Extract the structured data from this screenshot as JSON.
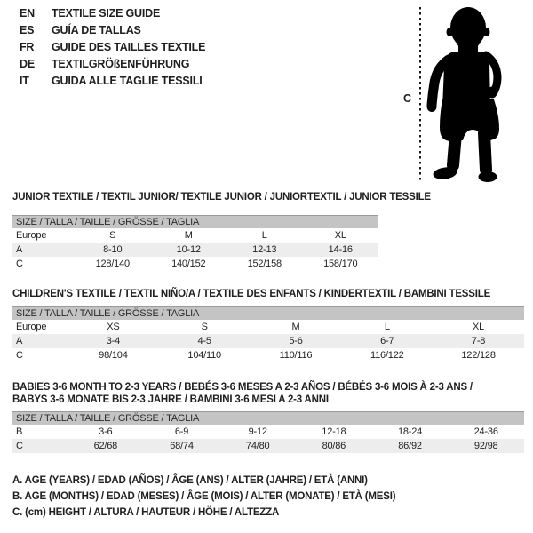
{
  "languages": {
    "items": [
      {
        "code": "EN",
        "label": "TEXTILE SIZE GUIDE"
      },
      {
        "code": "ES",
        "label": "GUÍA DE TALLAS"
      },
      {
        "code": "FR",
        "label": "GUIDE DES TAILLES TEXTILE"
      },
      {
        "code": "DE",
        "label": "TEXTILGRÖßENFÜHRUNG"
      },
      {
        "code": "IT",
        "label": "GUIDA ALLE TAGLIE TESSILI"
      }
    ]
  },
  "figure": {
    "height_marker_label": "C",
    "silhouette": "standing-baby",
    "silhouette_color": "#000000"
  },
  "colors": {
    "text": "#1f1f1f",
    "size_bar_bg": "#c4c4c4",
    "size_bar_border": "#9a9a9a",
    "row_shaded_bg": "#ededed"
  },
  "tables": {
    "junior": {
      "title_lines": [
        "JUNIOR TEXTILE / TEXTIL JUNIOR/ TEXTILE JUNIOR / JUNIORTEXTIL / JUNIOR TESSILE"
      ],
      "size_header": "SIZE / TALLA / TAILLE / GRÖSSE / TAGLIA",
      "rows": [
        {
          "shaded": false,
          "cells": [
            "Europe",
            "S",
            "M",
            "L",
            "XL"
          ]
        },
        {
          "shaded": true,
          "cells": [
            "A",
            "8-10",
            "10-12",
            "12-13",
            "14-16"
          ]
        },
        {
          "shaded": false,
          "cells": [
            "C",
            "128/140",
            "140/152",
            "152/158",
            "158/170"
          ]
        }
      ]
    },
    "children": {
      "title_lines": [
        "CHILDREN'S TEXTILE / TEXTIL NIÑO/A / TEXTILE DES ENFANTS / KINDERTEXTIL / BAMBINI TESSILE"
      ],
      "size_header": "SIZE / TALLA / TAILLE / GRÖSSE / TAGLIA",
      "rows": [
        {
          "shaded": false,
          "cells": [
            "Europe",
            "XS",
            "S",
            "M",
            "L",
            "XL"
          ]
        },
        {
          "shaded": true,
          "cells": [
            "A",
            "3-4",
            "4-5",
            "5-6",
            "6-7",
            "7-8"
          ]
        },
        {
          "shaded": false,
          "cells": [
            "C",
            "98/104",
            "104/110",
            "110/116",
            "116/122",
            "122/128"
          ]
        }
      ]
    },
    "babies": {
      "title_lines": [
        "BABIES 3-6 MONTH TO 2-3 YEARS / BEBÉS 3-6 MESES A 2-3 AÑOS / BÉBÉS 3-6 MOIS À 2-3 ANS /",
        "BABYS 3-6 MONATE BIS 2-3 JAHRE / BAMBINI 3-6 MESI A 2-3 ANNI"
      ],
      "size_header": "SIZE / TALLA / TAILLE / GRÖSSE / TAGLIA",
      "rows": [
        {
          "shaded": false,
          "cells": [
            "B",
            "3-6",
            "6-9",
            "9-12",
            "12-18",
            "18-24",
            "24-36"
          ]
        },
        {
          "shaded": true,
          "cells": [
            "C",
            "62/68",
            "68/74",
            "74/80",
            "80/86",
            "86/92",
            "92/98"
          ]
        }
      ]
    }
  },
  "legend": {
    "lines": [
      "A. AGE (YEARS) / EDAD (AÑOS) / ÂGE (ANS) / ALTER (JAHRE) / ETÀ (ANNI)",
      "B. AGE (MONTHS) / EDAD (MESES) / ÂGE (MOIS) / ALTER (MONATE) / ETÀ (MESI)",
      "C. (cm) HEIGHT / ALTURA / HAUTEUR / HÖHE / ALTEZZA"
    ]
  }
}
